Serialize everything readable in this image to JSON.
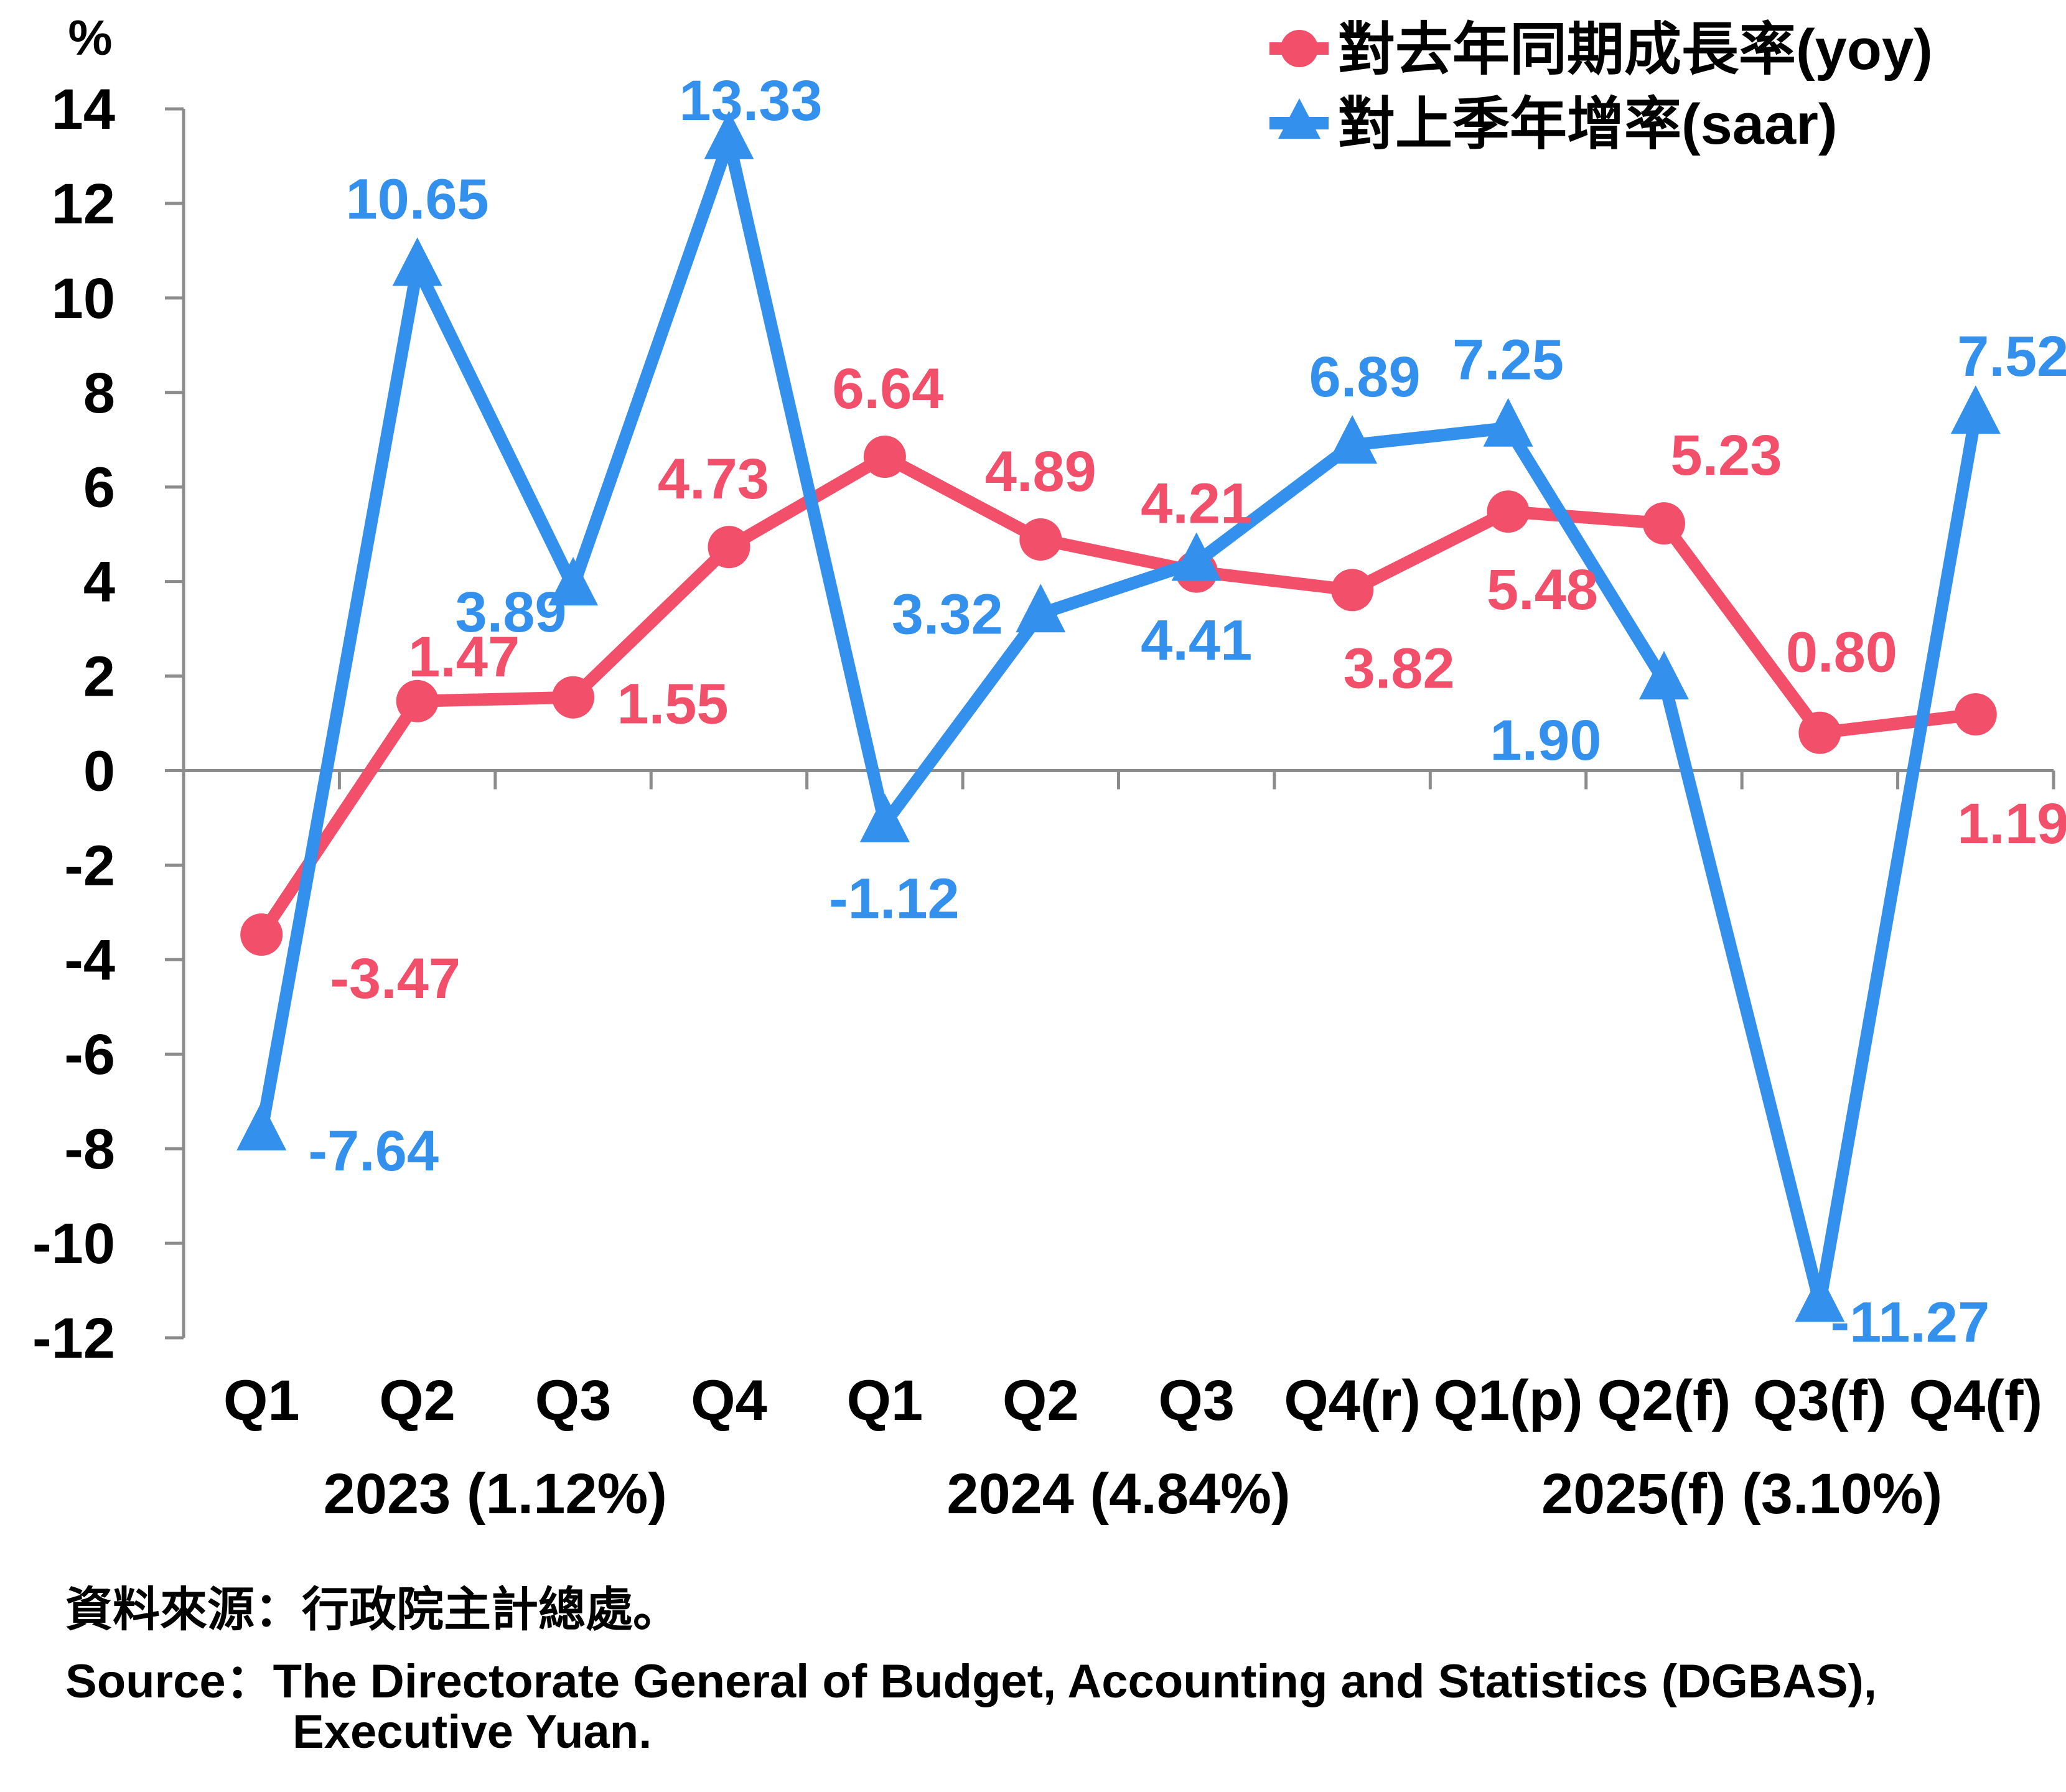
{
  "chart_data": {
    "type": "line",
    "unit_label": "%",
    "categories": [
      "Q1",
      "Q2",
      "Q3",
      "Q4",
      "Q1",
      "Q2",
      "Q3",
      "Q4(r)",
      "Q1(p)",
      "Q2(f)",
      "Q3(f)",
      "Q4(f)"
    ],
    "groups": [
      {
        "label": "2023 (1.12%)",
        "start": 0,
        "end": 3
      },
      {
        "label": "2024 (4.84%)",
        "start": 4,
        "end": 7
      },
      {
        "label": "2025(f) (3.10%)",
        "start": 8,
        "end": 11
      }
    ],
    "ylim": [
      -12,
      14
    ],
    "yticks": [
      14,
      12,
      10,
      8,
      6,
      4,
      2,
      0,
      -2,
      -4,
      -6,
      -8,
      -10,
      -12
    ],
    "series": [
      {
        "name": "對去年同期成長率(yoy)",
        "color": "#f24f6a",
        "marker": "circle",
        "values": [
          -3.47,
          1.47,
          1.55,
          4.73,
          6.64,
          4.89,
          4.21,
          3.82,
          5.48,
          5.23,
          0.8,
          1.19
        ],
        "labels": [
          "-3.47",
          "1.47",
          "1.55",
          "4.73",
          "6.64",
          "4.89",
          "4.21",
          "3.82",
          "5.48",
          "5.23",
          "0.80",
          "1.19"
        ]
      },
      {
        "name": "對上季年增率(saar)",
        "color": "#3391ed",
        "marker": "triangle",
        "values": [
          -7.64,
          10.65,
          3.89,
          13.33,
          -1.12,
          3.32,
          4.41,
          6.89,
          7.25,
          1.9,
          -11.27,
          7.52
        ],
        "labels": [
          "-7.64",
          "10.65",
          "3.89",
          "13.33",
          "-1.12",
          "3.32",
          "4.41",
          "6.89",
          "7.25",
          "1.90",
          "-11.27",
          "7.52"
        ]
      }
    ]
  },
  "source": {
    "line1": "資料來源：行政院主計總處。",
    "line2": "Source：The Directorate General of Budget, Accounting and Statistics (DGBAS),",
    "line3": "Executive Yuan."
  }
}
